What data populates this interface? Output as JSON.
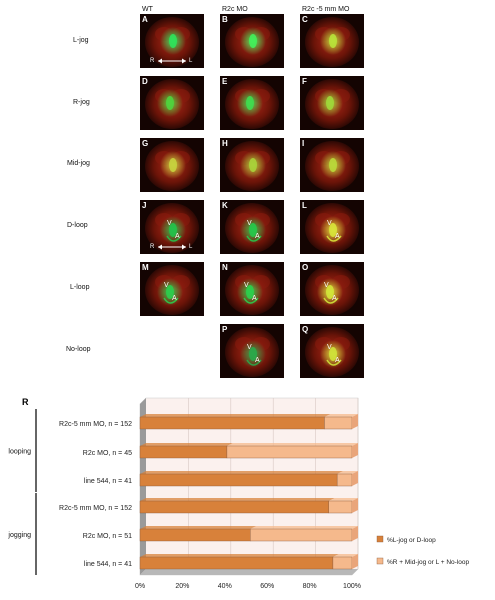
{
  "columns": [
    "WT",
    "R2c MO",
    "R2c -5 mm MO"
  ],
  "rows": [
    "L-jog",
    "R-jog",
    "Mid-jog",
    "D-loop",
    "L-loop",
    "No-loop"
  ],
  "panels": [
    {
      "letter": "A",
      "row": 0,
      "col": 0,
      "v": "",
      "a": "",
      "glow": "#2fe25a",
      "axis": true
    },
    {
      "letter": "B",
      "row": 0,
      "col": 1,
      "v": "",
      "a": "",
      "glow": "#43f05a"
    },
    {
      "letter": "C",
      "row": 0,
      "col": 2,
      "v": "",
      "a": "",
      "glow": "#b8e23a"
    },
    {
      "letter": "D",
      "row": 1,
      "col": 0,
      "v": "",
      "a": "",
      "glow": "#4fd33d"
    },
    {
      "letter": "E",
      "row": 1,
      "col": 1,
      "v": "",
      "a": "",
      "glow": "#3fdc4f"
    },
    {
      "letter": "F",
      "row": 1,
      "col": 2,
      "v": "",
      "a": "",
      "glow": "#9ed83a"
    },
    {
      "letter": "G",
      "row": 2,
      "col": 0,
      "v": "",
      "a": "",
      "glow": "#c6d23e"
    },
    {
      "letter": "H",
      "row": 2,
      "col": 1,
      "v": "",
      "a": "",
      "glow": "#a8d13a"
    },
    {
      "letter": "I",
      "row": 2,
      "col": 2,
      "v": "",
      "a": "",
      "glow": "#b9d83a"
    },
    {
      "letter": "J",
      "row": 3,
      "col": 0,
      "v": "V",
      "a": "A",
      "glow": "#22c24a",
      "axis": true
    },
    {
      "letter": "K",
      "row": 3,
      "col": 1,
      "v": "V",
      "a": "A",
      "glow": "#26c84a"
    },
    {
      "letter": "L",
      "row": 3,
      "col": 2,
      "v": "V",
      "a": "A",
      "glow": "#d8e43a"
    },
    {
      "letter": "M",
      "row": 4,
      "col": 0,
      "v": "V",
      "a": "A",
      "glow": "#2ccd4d"
    },
    {
      "letter": "N",
      "row": 4,
      "col": 1,
      "v": "V",
      "a": "A",
      "glow": "#2bd04c"
    },
    {
      "letter": "O",
      "row": 4,
      "col": 2,
      "v": "V",
      "a": "A",
      "glow": "#d2e63a"
    },
    {
      "letter": "P",
      "row": 5,
      "col": 1,
      "v": "V",
      "a": "A",
      "glow": "#2aa84a"
    },
    {
      "letter": "Q",
      "row": 5,
      "col": 2,
      "v": "V",
      "a": "A",
      "glow": "#cfe23a"
    }
  ],
  "axis_note": {
    "right": "R",
    "left": "L"
  },
  "chart_data": {
    "type": "bar",
    "stacked": true,
    "horizontal": true,
    "label": "R",
    "categories": [
      "R2c-5 mm MO, n = 152",
      "R2c MO, n = 45",
      "line 544, n = 41",
      "R2c-5 mm MO, n = 152",
      "R2c MO, n = 51",
      "line 544, n = 41"
    ],
    "groups": [
      {
        "name": "looping",
        "rows": [
          0,
          1,
          2
        ]
      },
      {
        "name": "jogging",
        "rows": [
          3,
          4,
          5
        ]
      }
    ],
    "series": [
      {
        "name": "%L-jog or D-loop",
        "values": [
          87,
          41,
          93,
          89,
          52,
          91
        ],
        "color": "#d8813a"
      },
      {
        "name": "%R + Mid-jog or L + No-loop",
        "values": [
          13,
          59,
          7,
          11,
          48,
          9
        ],
        "color": "#f5b98c"
      }
    ],
    "x_ticks": [
      "0%",
      "20%",
      "40%",
      "60%",
      "80%",
      "100%"
    ],
    "xlim": [
      0,
      100
    ],
    "grid": true,
    "legend": "right"
  }
}
